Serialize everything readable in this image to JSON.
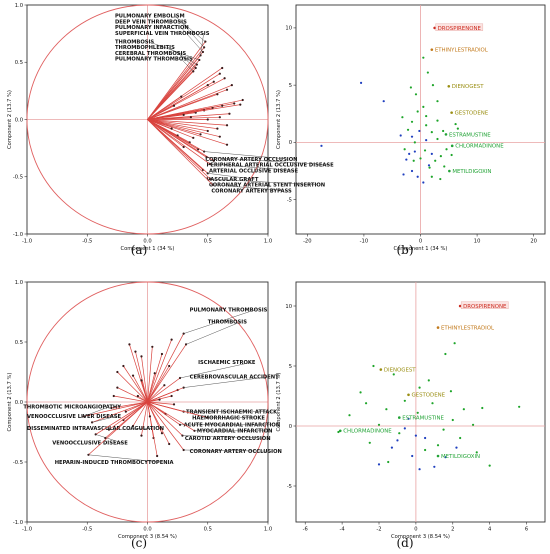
{
  "colors": {
    "red_line": "#d9443f",
    "circle": "#e06060",
    "zero_line": "#e9a3a3",
    "blue_point": "#1f3fbf",
    "green_point": "#1ea52a",
    "red_label": "#cc2a1f",
    "orange_label": "#c2791b",
    "olive_label": "#9a8e12",
    "green_label": "#22a336"
  },
  "chart_data": [
    {
      "id": "a",
      "type": "scatter",
      "subtype": "loading-plot",
      "caption": "(a)",
      "xlabel": "Component 1  (34 %)",
      "ylabel": "Component 2  (13.7 %)",
      "xlim": [
        -1.0,
        1.0
      ],
      "ylim": [
        -1.0,
        1.0
      ],
      "xticks": [
        "-1.0",
        "-0.5",
        "0.0",
        "0.5",
        "1.0"
      ],
      "yticks": [
        "-1.0",
        "-0.5",
        "0.0",
        "0.5",
        "1.0"
      ],
      "unit_circle": true,
      "labels": [
        {
          "text": "PULMONARY EMBOLISM",
          "x": 0.48,
          "y": 0.68,
          "tx": -0.27,
          "ty": 0.905
        },
        {
          "text": "DEEP VEIN THROMBOSIS",
          "x": 0.47,
          "y": 0.63,
          "tx": -0.27,
          "ty": 0.855
        },
        {
          "text": "PULMONARY INFARCTION",
          "x": 0.46,
          "y": 0.59,
          "tx": -0.27,
          "ty": 0.805
        },
        {
          "text": "SUPERFICIAL VEIN THROMBOSIS",
          "x": 0.44,
          "y": 0.56,
          "tx": -0.27,
          "ty": 0.755
        },
        {
          "text": "THROMBOSIS",
          "x": 0.43,
          "y": 0.52,
          "tx": -0.27,
          "ty": 0.68
        },
        {
          "text": "THROMBOPHLEBITIS",
          "x": 0.41,
          "y": 0.48,
          "tx": -0.27,
          "ty": 0.63
        },
        {
          "text": "CEREBRAL THROMBOSIS",
          "x": 0.4,
          "y": 0.45,
          "tx": -0.27,
          "ty": 0.58
        },
        {
          "text": "PULMONARY THROMBOSIS",
          "x": 0.38,
          "y": 0.42,
          "tx": -0.27,
          "ty": 0.53
        },
        {
          "text": "CORONARY ARTERY OCCLUSION",
          "x": 0.47,
          "y": -0.28,
          "tx": 0.48,
          "ty": -0.345
        },
        {
          "text": "PERIPHERAL ARTERIAL OCCLUSIVE DISEASE",
          "x": 0.49,
          "y": -0.33,
          "tx": 0.49,
          "ty": -0.395
        },
        {
          "text": "ARTERIAL OCCLUSIVE DISEASE",
          "x": 0.52,
          "y": -0.39,
          "tx": 0.51,
          "ty": -0.445
        },
        {
          "text": "VASCULAR GRAFT",
          "x": 0.5,
          "y": -0.47,
          "tx": 0.49,
          "ty": -0.52
        },
        {
          "text": "CORONARY ARTERIAL STENT INSERTION",
          "x": 0.52,
          "y": -0.52,
          "tx": 0.51,
          "ty": -0.57
        },
        {
          "text": "CORONARY ARTERY BYPASS",
          "x": 0.54,
          "y": -0.57,
          "tx": 0.53,
          "ty": -0.62
        }
      ],
      "vectors": [
        [
          0.62,
          0.45
        ],
        [
          0.6,
          0.4
        ],
        [
          0.64,
          0.36
        ],
        [
          0.55,
          0.33
        ],
        [
          0.7,
          0.3
        ],
        [
          0.5,
          0.3
        ],
        [
          0.66,
          0.26
        ],
        [
          0.58,
          0.22
        ],
        [
          0.79,
          0.17
        ],
        [
          0.72,
          0.14
        ],
        [
          0.62,
          0.12
        ],
        [
          0.54,
          0.1
        ],
        [
          0.47,
          0.08
        ],
        [
          0.4,
          0.06
        ],
        [
          0.77,
          0.13
        ],
        [
          0.68,
          0.05
        ],
        [
          0.6,
          0.02
        ],
        [
          0.5,
          0.0
        ],
        [
          0.36,
          0.02
        ],
        [
          0.3,
          0.04
        ],
        [
          0.66,
          -0.05
        ],
        [
          0.58,
          -0.08
        ],
        [
          0.5,
          -0.1
        ],
        [
          0.44,
          -0.13
        ],
        [
          0.38,
          -0.16
        ],
        [
          0.35,
          -0.2
        ],
        [
          0.3,
          -0.24
        ],
        [
          0.6,
          -0.15
        ],
        [
          0.66,
          -0.22
        ],
        [
          0.42,
          -0.26
        ],
        [
          0.55,
          -0.36
        ],
        [
          0.46,
          -0.44
        ],
        [
          0.25,
          -0.14
        ],
        [
          0.2,
          -0.08
        ],
        [
          0.22,
          0.12
        ],
        [
          0.28,
          0.2
        ]
      ]
    },
    {
      "id": "b",
      "type": "scatter",
      "subtype": "score-plot",
      "caption": "(b)",
      "xlabel": "Component 1  (34 %)",
      "ylabel": "Component 2  (13.7 %)",
      "xlim": [
        -22,
        22
      ],
      "ylim": [
        -8,
        12
      ],
      "xticks": [
        "-20",
        "-10",
        "0",
        "10",
        "20"
      ],
      "yticks": [
        "-5",
        "0",
        "5",
        "10"
      ],
      "labels": [
        {
          "text": "DROSPIRENONE",
          "x": 2.5,
          "y": 10.0,
          "color": "red_label",
          "boxed": true
        },
        {
          "text": "ETHINYLESTRADIOL",
          "x": 2.0,
          "y": 8.1,
          "color": "orange_label"
        },
        {
          "text": "DIENOGEST",
          "x": 5.0,
          "y": 4.9,
          "color": "olive_label"
        },
        {
          "text": "GESTODENE",
          "x": 5.5,
          "y": 2.6,
          "color": "olive_label"
        },
        {
          "text": "ESTRAMUSTINE",
          "x": 4.5,
          "y": 0.7,
          "color": "green_label"
        },
        {
          "text": "CHLORMADINONE",
          "x": 5.6,
          "y": -0.3,
          "color": "green_label"
        },
        {
          "text": "METILDIGOXIN",
          "x": 5.1,
          "y": -2.5,
          "color": "green_label"
        }
      ],
      "points_blue": [
        [
          -10.5,
          5.2
        ],
        [
          -6.5,
          3.6
        ],
        [
          -17.5,
          -0.3
        ],
        [
          -2.5,
          -1.5
        ],
        [
          -3.0,
          -2.8
        ],
        [
          -1.5,
          -2.5
        ],
        [
          -1.0,
          -0.8
        ],
        [
          -0.5,
          -3.0
        ],
        [
          0.5,
          -3.5
        ],
        [
          -2.0,
          -1.0
        ],
        [
          1.0,
          0.2
        ],
        [
          -0.2,
          1.0
        ],
        [
          2.0,
          -1.0
        ],
        [
          -3.5,
          0.6
        ],
        [
          1.5,
          -2.0
        ],
        [
          -1.5,
          0.5
        ]
      ],
      "points_green": [
        [
          -1.5,
          1.8
        ],
        [
          -0.5,
          2.7
        ],
        [
          0.5,
          3.1
        ],
        [
          1.0,
          1.5
        ],
        [
          2.0,
          0.9
        ],
        [
          3.0,
          1.9
        ],
        [
          4.0,
          1.0
        ],
        [
          4.6,
          -0.6
        ],
        [
          3.6,
          -1.2
        ],
        [
          2.6,
          -1.6
        ],
        [
          1.6,
          -2.2
        ],
        [
          0.8,
          -0.7
        ],
        [
          -1.2,
          -1.6
        ],
        [
          -2.2,
          1.1
        ],
        [
          -3.2,
          2.2
        ],
        [
          3.0,
          3.6
        ],
        [
          2.2,
          5.0
        ],
        [
          1.3,
          6.1
        ],
        [
          0.5,
          7.4
        ],
        [
          -1.7,
          4.8
        ],
        [
          3.5,
          -3.2
        ],
        [
          5.5,
          -1.1
        ],
        [
          6.2,
          1.6
        ],
        [
          1.0,
          2.3
        ],
        [
          -0.8,
          4.2
        ],
        [
          -2.8,
          -0.6
        ],
        [
          4.2,
          -2.1
        ],
        [
          2.0,
          -3.0
        ],
        [
          -1.0,
          0.0
        ],
        [
          0.0,
          -1.4
        ],
        [
          3.0,
          0.3
        ],
        [
          6.6,
          1.2
        ]
      ]
    },
    {
      "id": "c",
      "type": "scatter",
      "subtype": "loading-plot",
      "caption": "(c)",
      "xlabel": "Component 3  (8.54 %)",
      "ylabel": "Component 2  (13.7 %)",
      "xlim": [
        -1.0,
        1.0
      ],
      "ylim": [
        -1.0,
        1.0
      ],
      "xticks": [
        "-1.0",
        "-0.5",
        "0.0",
        "0.5",
        "1.0"
      ],
      "yticks": [
        "-1.0",
        "-0.5",
        "0.0",
        "0.5",
        "1.0"
      ],
      "unit_circle": true,
      "labels": [
        {
          "text": "PULMONARY THROMBOSIS",
          "x": 0.3,
          "y": 0.57,
          "tx": 0.35,
          "ty": 0.77
        },
        {
          "text": "THROMBOSIS",
          "x": 0.32,
          "y": 0.48,
          "tx": 0.5,
          "ty": 0.67
        },
        {
          "text": "ISCHAEMIC STROKE",
          "x": 0.27,
          "y": 0.2,
          "tx": 0.42,
          "ty": 0.33
        },
        {
          "text": "CEREBROVASCULAR ACCIDENT",
          "x": 0.3,
          "y": 0.12,
          "tx": 0.35,
          "ty": 0.21
        },
        {
          "text": "TRANSIENT ISCHAEMIC ATTACK",
          "x": 0.3,
          "y": -0.08,
          "tx": 0.32,
          "ty": -0.08
        },
        {
          "text": "HAEMORRHAGIC STROKE",
          "x": 0.5,
          "y": -0.13,
          "tx": 0.37,
          "ty": -0.13
        },
        {
          "text": "ACUTE MYOCARDIAL INFARCTION",
          "x": 0.27,
          "y": -0.19,
          "tx": 0.3,
          "ty": -0.19
        },
        {
          "text": "MYOCARDIAL INFARCTION",
          "x": 0.39,
          "y": -0.24,
          "tx": 0.41,
          "ty": -0.24
        },
        {
          "text": "CAROTID ARTERY OCCLUSION",
          "x": 0.29,
          "y": -0.28,
          "tx": 0.31,
          "ty": -0.3
        },
        {
          "text": "CORONARY ARTERY OCCLUSION",
          "x": 0.3,
          "y": -0.4,
          "tx": 0.35,
          "ty": -0.41
        },
        {
          "text": "THROMBOTIC MICROANGIOPATHY",
          "x": -0.53,
          "y": -0.12,
          "tx": -1.03,
          "ty": -0.04
        },
        {
          "text": "VENOOCCLUSIVE LIVER DISEASE",
          "x": -0.46,
          "y": -0.17,
          "tx": -1.0,
          "ty": -0.12
        },
        {
          "text": "DISSEMINATED INTRAVASCULAR COAGULATION",
          "x": -0.32,
          "y": -0.23,
          "tx": -1.0,
          "ty": -0.22
        },
        {
          "text": "VENOOCCLUSIVE DISEASE",
          "x": -0.43,
          "y": -0.27,
          "tx": -0.79,
          "ty": -0.34
        },
        {
          "text": "HEPARIN-INDUCED THROMBOCYTOPENIA",
          "x": -0.49,
          "y": -0.44,
          "tx": -0.77,
          "ty": -0.5
        }
      ],
      "vectors": [
        [
          -0.15,
          0.48
        ],
        [
          -0.1,
          0.42
        ],
        [
          -0.05,
          0.38
        ],
        [
          0.04,
          0.46
        ],
        [
          0.12,
          0.4
        ],
        [
          0.18,
          0.3
        ],
        [
          -0.2,
          0.3
        ],
        [
          -0.12,
          0.22
        ],
        [
          -0.05,
          0.18
        ],
        [
          0.06,
          0.24
        ],
        [
          0.14,
          0.14
        ],
        [
          0.2,
          0.05
        ],
        [
          0.22,
          -0.02
        ],
        [
          -0.25,
          0.12
        ],
        [
          -0.3,
          -0.05
        ],
        [
          -0.2,
          -0.15
        ],
        [
          -0.12,
          -0.2
        ],
        [
          -0.05,
          -0.28
        ],
        [
          0.05,
          -0.3
        ],
        [
          0.12,
          -0.26
        ],
        [
          0.18,
          -0.35
        ],
        [
          0.08,
          -0.45
        ],
        [
          -0.35,
          -0.3
        ],
        [
          -0.28,
          0.05
        ],
        [
          0.25,
          0.1
        ],
        [
          0.1,
          0.02
        ],
        [
          -0.08,
          0.05
        ],
        [
          0.02,
          -0.12
        ],
        [
          0.15,
          -0.1
        ],
        [
          -0.18,
          -0.08
        ],
        [
          0.2,
          0.52
        ],
        [
          -0.25,
          0.25
        ]
      ]
    },
    {
      "id": "d",
      "type": "scatter",
      "subtype": "score-plot",
      "caption": "(d)",
      "xlabel": "Component 3  (8.54 %)",
      "ylabel": "Component 2  (13.7 %)",
      "xlim": [
        -6.5,
        7
      ],
      "ylim": [
        -8,
        12
      ],
      "xticks": [
        "-6",
        "-4",
        "-2",
        "0",
        "2",
        "4",
        "6"
      ],
      "yticks": [
        "-5",
        "0",
        "5",
        "10"
      ],
      "labels": [
        {
          "text": "DROSPIRENONE",
          "x": 2.4,
          "y": 10.0,
          "color": "red_label",
          "boxed": true
        },
        {
          "text": "ETHINYLESTRADIOL",
          "x": 1.2,
          "y": 8.2,
          "color": "orange_label"
        },
        {
          "text": "DIENOGEST",
          "x": -1.9,
          "y": 4.7,
          "color": "olive_label"
        },
        {
          "text": "GESTODENE",
          "x": -0.4,
          "y": 2.6,
          "color": "olive_label"
        },
        {
          "text": "ESTRAMUSTINE",
          "x": -0.9,
          "y": 0.7,
          "color": "green_label"
        },
        {
          "text": "CHLORMADINONE",
          "x": -4.1,
          "y": -0.4,
          "color": "green_label"
        },
        {
          "text": "METILDIGOXIN",
          "x": 1.2,
          "y": -2.5,
          "color": "green_label"
        }
      ],
      "points_blue": [
        [
          -1.3,
          -1.8
        ],
        [
          -0.6,
          -0.2
        ],
        [
          0.2,
          -3.6
        ],
        [
          -2.0,
          -3.2
        ],
        [
          1.6,
          -2.6
        ],
        [
          0.5,
          -1.0
        ],
        [
          -0.2,
          -2.5
        ],
        [
          1.0,
          -3.4
        ],
        [
          -1.0,
          -1.2
        ],
        [
          0.0,
          -0.8
        ],
        [
          2.2,
          -1.8
        ],
        [
          -0.4,
          0.6
        ]
      ],
      "points_green": [
        [
          -2.3,
          5.0
        ],
        [
          -1.2,
          4.3
        ],
        [
          -2.7,
          1.9
        ],
        [
          -3.6,
          0.9
        ],
        [
          -2.0,
          0.1
        ],
        [
          -0.9,
          -0.6
        ],
        [
          0.1,
          1.1
        ],
        [
          0.9,
          1.9
        ],
        [
          1.9,
          2.9
        ],
        [
          2.6,
          1.4
        ],
        [
          3.1,
          0.1
        ],
        [
          2.4,
          -1.0
        ],
        [
          1.2,
          -1.6
        ],
        [
          0.2,
          3.2
        ],
        [
          -0.6,
          2.1
        ],
        [
          1.6,
          6.0
        ],
        [
          2.1,
          6.9
        ],
        [
          3.3,
          -2.2
        ],
        [
          4.0,
          -3.3
        ],
        [
          -1.5,
          -3.0
        ],
        [
          -4.2,
          -0.5
        ],
        [
          -3.0,
          2.8
        ],
        [
          0.7,
          3.8
        ],
        [
          3.6,
          1.5
        ],
        [
          5.6,
          1.6
        ],
        [
          -2.5,
          -1.4
        ],
        [
          0.5,
          -2.0
        ],
        [
          2.0,
          0.5
        ],
        [
          -1.6,
          1.4
        ],
        [
          1.5,
          -0.3
        ]
      ]
    }
  ]
}
